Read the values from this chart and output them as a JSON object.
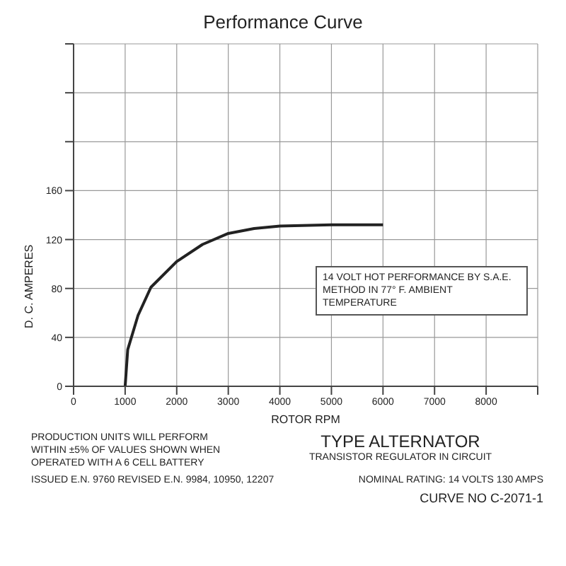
{
  "chart_data": {
    "type": "line",
    "title": "Performance Curve",
    "xlabel": "ROTOR RPM",
    "ylabel": "D. C. AMPERES",
    "x": [
      1000,
      1050,
      1250,
      1500,
      2000,
      2500,
      3000,
      3500,
      4000,
      5000,
      6000
    ],
    "series": [
      {
        "color": "#222222",
        "values": [
          0,
          30,
          58,
          81,
          102,
          116,
          125,
          129,
          131,
          132,
          132
        ]
      }
    ],
    "xlim": [
      0,
      9000
    ],
    "xticks": [
      0,
      1000,
      2000,
      3000,
      4000,
      5000,
      6000,
      7000,
      8000,
      {
        "value": 9000,
        "label": null
      }
    ],
    "ylim": [
      0,
      280
    ],
    "yticks": [
      0,
      40,
      80,
      120,
      160,
      {
        "value": 200,
        "label": null
      },
      {
        "value": 240,
        "label": null
      },
      {
        "value": 280,
        "label": null
      }
    ],
    "grid": true,
    "marker": "none",
    "line_style": "solid",
    "annotations": [
      "14 VOLT HOT PERFORMANCE BY S.A.E. METHOD IN 77° F. AMBIENT TEMPERATURE",
      "PRODUCTION UNITS WILL PERFORM WITHIN ±5% OF VALUES SHOWN WHEN OPERATED WITH A 6 CELL BATTERY",
      "TYPE ALTERNATOR",
      "TRANSISTOR REGULATOR IN CIRCUIT",
      "NOMINAL RATING: 14 VOLTS 130 AMPS",
      "ISSUED E.N. 9760 REVISED E.N. 9984, 10950, 12207",
      "CURVE NO C-2071-1"
    ]
  }
}
